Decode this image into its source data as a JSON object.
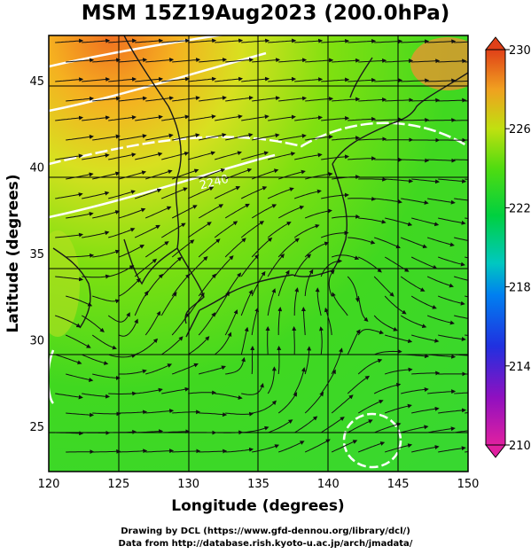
{
  "title": "MSM 15Z19Aug2023 (200.0hPa)",
  "x_axis": {
    "label": "Longitude (degrees)",
    "ticks": [
      "120",
      "125",
      "130",
      "135",
      "140",
      "145",
      "150"
    ],
    "tick_values": [
      120,
      125,
      130,
      135,
      140,
      145,
      150
    ],
    "range": [
      120,
      150
    ]
  },
  "y_axis": {
    "label": "Latitude  (degrees)",
    "ticks": [
      "25",
      "30",
      "35",
      "40",
      "45"
    ],
    "tick_values": [
      25,
      30,
      35,
      40,
      45
    ],
    "range": [
      22.4,
      47.6
    ]
  },
  "colorbar": {
    "labels": [
      "230",
      "226",
      "222",
      "218",
      "214",
      "210"
    ],
    "values": [
      230,
      226,
      222,
      218,
      214,
      210
    ],
    "range": [
      210,
      230
    ],
    "colors": [
      "#e0209a",
      "#9a10c8",
      "#3030e0",
      "#0090e8",
      "#00c8b8",
      "#00d050",
      "#6ce000",
      "#c0e000",
      "#f0c000",
      "#f08020",
      "#e04020"
    ]
  },
  "contour_label": "2240",
  "credits": {
    "line1": "Drawing by DCL (https://www.gfd-dennou.org/library/dcl/)",
    "line2": "Data from http://database.rish.kyoto-u.ac.jp/arch/jmadata/"
  }
}
